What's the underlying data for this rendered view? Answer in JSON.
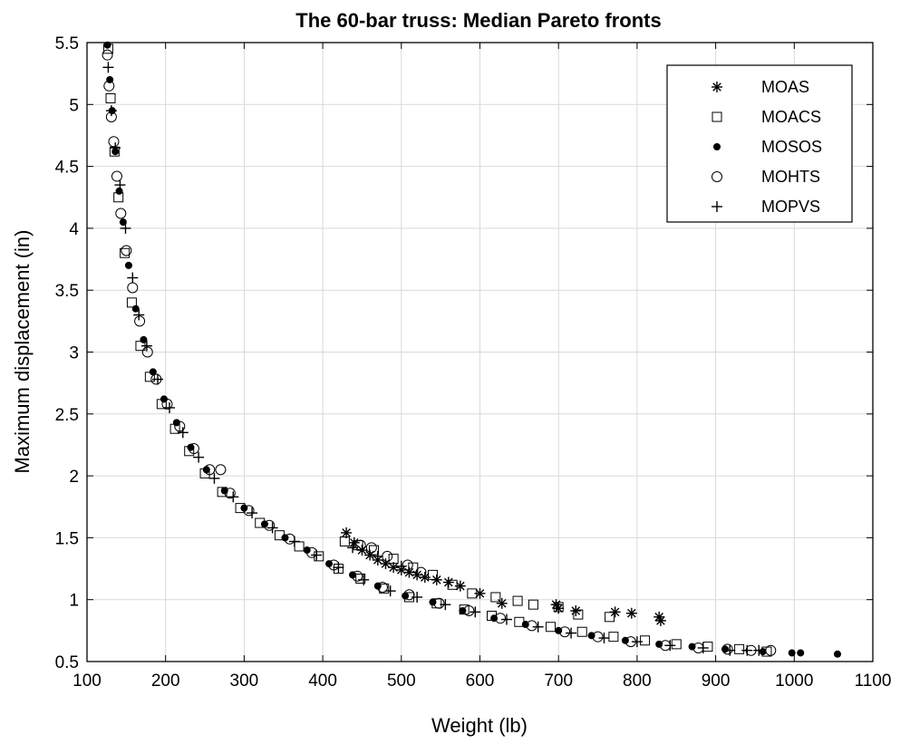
{
  "chart_data": {
    "type": "scatter",
    "title": "The 60-bar truss: Median Pareto fronts",
    "xlabel": "Weight (lb)",
    "ylabel": "Maximum displacement (in)",
    "xlim": [
      100,
      1100
    ],
    "ylim": [
      0.5,
      5.5
    ],
    "xticks": [
      100,
      200,
      300,
      400,
      500,
      600,
      700,
      800,
      900,
      1000,
      1100
    ],
    "yticks": [
      0.5,
      1,
      1.5,
      2,
      2.5,
      3,
      3.5,
      4,
      4.5,
      5,
      5.5
    ],
    "xtick_labels": [
      "100",
      "200",
      "300",
      "400",
      "500",
      "600",
      "700",
      "800",
      "900",
      "1000",
      "1100"
    ],
    "ytick_labels": [
      "0.5",
      "1",
      "1.5",
      "2",
      "2.5",
      "3",
      "3.5",
      "4",
      "4.5",
      "5",
      "5.5"
    ],
    "grid": true,
    "legend_position": "top-right",
    "series": [
      {
        "name": "MOAS",
        "marker": "asterisk",
        "points": [
          [
            430,
            1.54
          ],
          [
            440,
            1.46
          ],
          [
            450,
            1.4
          ],
          [
            460,
            1.36
          ],
          [
            470,
            1.32
          ],
          [
            480,
            1.29
          ],
          [
            490,
            1.26
          ],
          [
            500,
            1.24
          ],
          [
            510,
            1.22
          ],
          [
            520,
            1.2
          ],
          [
            530,
            1.18
          ],
          [
            545,
            1.16
          ],
          [
            560,
            1.14
          ],
          [
            575,
            1.11
          ],
          [
            600,
            1.05
          ],
          [
            628,
            0.97
          ],
          [
            697,
            0.96
          ],
          [
            700,
            0.93
          ],
          [
            722,
            0.91
          ],
          [
            772,
            0.9
          ],
          [
            793,
            0.89
          ],
          [
            828,
            0.86
          ],
          [
            830,
            0.83
          ]
        ]
      },
      {
        "name": "MOACS",
        "marker": "square",
        "points": [
          [
            127,
            5.45
          ],
          [
            130,
            5.05
          ],
          [
            135,
            4.62
          ],
          [
            140,
            4.25
          ],
          [
            148,
            3.8
          ],
          [
            157,
            3.4
          ],
          [
            168,
            3.05
          ],
          [
            180,
            2.8
          ],
          [
            195,
            2.58
          ],
          [
            212,
            2.38
          ],
          [
            230,
            2.2
          ],
          [
            250,
            2.02
          ],
          [
            272,
            1.87
          ],
          [
            295,
            1.74
          ],
          [
            320,
            1.62
          ],
          [
            345,
            1.52
          ],
          [
            370,
            1.43
          ],
          [
            395,
            1.35
          ],
          [
            420,
            1.25
          ],
          [
            448,
            1.17
          ],
          [
            478,
            1.09
          ],
          [
            510,
            1.02
          ],
          [
            545,
            0.97
          ],
          [
            580,
            0.92
          ],
          [
            615,
            0.87
          ],
          [
            650,
            0.82
          ],
          [
            690,
            0.78
          ],
          [
            730,
            0.74
          ],
          [
            770,
            0.7
          ],
          [
            810,
            0.67
          ],
          [
            850,
            0.64
          ],
          [
            890,
            0.62
          ],
          [
            930,
            0.6
          ],
          [
            965,
            0.58
          ],
          [
            428,
            1.47
          ],
          [
            445,
            1.44
          ],
          [
            465,
            1.4
          ],
          [
            490,
            1.33
          ],
          [
            515,
            1.26
          ],
          [
            540,
            1.2
          ],
          [
            565,
            1.12
          ],
          [
            590,
            1.05
          ],
          [
            620,
            1.02
          ],
          [
            648,
            0.99
          ],
          [
            668,
            0.96
          ],
          [
            700,
            0.94
          ],
          [
            725,
            0.88
          ],
          [
            765,
            0.86
          ]
        ]
      },
      {
        "name": "MOSOS",
        "marker": "dot",
        "points": [
          [
            126,
            5.48
          ],
          [
            129,
            5.2
          ],
          [
            132,
            4.95
          ],
          [
            136,
            4.62
          ],
          [
            141,
            4.3
          ],
          [
            146,
            4.05
          ],
          [
            153,
            3.7
          ],
          [
            162,
            3.35
          ],
          [
            172,
            3.1
          ],
          [
            184,
            2.84
          ],
          [
            198,
            2.62
          ],
          [
            214,
            2.43
          ],
          [
            232,
            2.23
          ],
          [
            252,
            2.05
          ],
          [
            275,
            1.88
          ],
          [
            300,
            1.74
          ],
          [
            326,
            1.61
          ],
          [
            352,
            1.5
          ],
          [
            380,
            1.4
          ],
          [
            408,
            1.29
          ],
          [
            438,
            1.2
          ],
          [
            470,
            1.11
          ],
          [
            505,
            1.03
          ],
          [
            540,
            0.98
          ],
          [
            578,
            0.91
          ],
          [
            618,
            0.85
          ],
          [
            658,
            0.8
          ],
          [
            700,
            0.75
          ],
          [
            742,
            0.71
          ],
          [
            785,
            0.67
          ],
          [
            828,
            0.64
          ],
          [
            870,
            0.62
          ],
          [
            912,
            0.6
          ],
          [
            960,
            0.58
          ],
          [
            997,
            0.57
          ],
          [
            1008,
            0.57
          ],
          [
            1055,
            0.56
          ]
        ]
      },
      {
        "name": "MOHTS",
        "marker": "circle",
        "points": [
          [
            126,
            5.4
          ],
          [
            128,
            5.15
          ],
          [
            131,
            4.9
          ],
          [
            134,
            4.7
          ],
          [
            138,
            4.42
          ],
          [
            143,
            4.12
          ],
          [
            150,
            3.82
          ],
          [
            158,
            3.52
          ],
          [
            167,
            3.25
          ],
          [
            177,
            3.0
          ],
          [
            188,
            2.78
          ],
          [
            202,
            2.58
          ],
          [
            218,
            2.4
          ],
          [
            236,
            2.22
          ],
          [
            256,
            2.05
          ],
          [
            270,
            2.05
          ],
          [
            282,
            1.86
          ],
          [
            306,
            1.72
          ],
          [
            332,
            1.6
          ],
          [
            358,
            1.49
          ],
          [
            386,
            1.38
          ],
          [
            414,
            1.28
          ],
          [
            444,
            1.19
          ],
          [
            476,
            1.1
          ],
          [
            510,
            1.04
          ],
          [
            548,
            0.97
          ],
          [
            586,
            0.91
          ],
          [
            626,
            0.85
          ],
          [
            666,
            0.79
          ],
          [
            708,
            0.74
          ],
          [
            750,
            0.7
          ],
          [
            792,
            0.66
          ],
          [
            836,
            0.63
          ],
          [
            878,
            0.61
          ],
          [
            915,
            0.6
          ],
          [
            945,
            0.59
          ],
          [
            970,
            0.59
          ],
          [
            448,
            1.44
          ],
          [
            462,
            1.42
          ],
          [
            482,
            1.35
          ],
          [
            508,
            1.28
          ],
          [
            525,
            1.22
          ]
        ]
      },
      {
        "name": "MOPVS",
        "marker": "plus",
        "points": [
          [
            127,
            5.3
          ],
          [
            131,
            4.95
          ],
          [
            136,
            4.65
          ],
          [
            142,
            4.35
          ],
          [
            149,
            4.0
          ],
          [
            158,
            3.6
          ],
          [
            166,
            3.3
          ],
          [
            176,
            3.05
          ],
          [
            190,
            2.78
          ],
          [
            205,
            2.55
          ],
          [
            222,
            2.35
          ],
          [
            242,
            2.15
          ],
          [
            262,
            1.98
          ],
          [
            286,
            1.83
          ],
          [
            310,
            1.7
          ],
          [
            336,
            1.58
          ],
          [
            364,
            1.47
          ],
          [
            392,
            1.36
          ],
          [
            420,
            1.26
          ],
          [
            452,
            1.16
          ],
          [
            486,
            1.07
          ],
          [
            520,
            1.02
          ],
          [
            556,
            0.96
          ],
          [
            594,
            0.9
          ],
          [
            634,
            0.84
          ],
          [
            674,
            0.78
          ],
          [
            716,
            0.73
          ],
          [
            758,
            0.69
          ],
          [
            800,
            0.66
          ],
          [
            842,
            0.63
          ],
          [
            884,
            0.61
          ],
          [
            918,
            0.59
          ],
          [
            940,
            0.59
          ],
          [
            955,
            0.59
          ],
          [
            438,
            1.42
          ],
          [
            470,
            1.35
          ],
          [
            500,
            1.27
          ]
        ]
      }
    ]
  }
}
